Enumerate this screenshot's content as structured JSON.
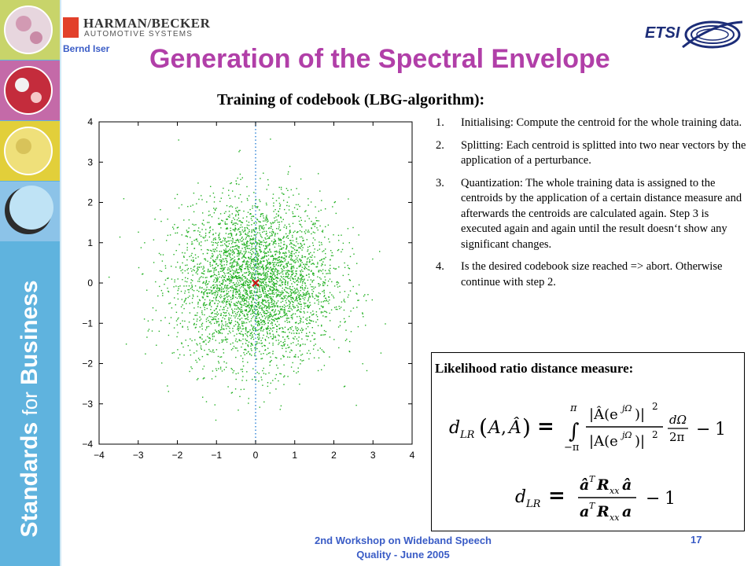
{
  "sidebar": {
    "text_prefix": "Standards",
    "text_middle": "for",
    "text_suffix": "Business"
  },
  "header": {
    "logo_name": "HARMAN/BECKER",
    "logo_subtitle": "AUTOMOTIVE SYSTEMS",
    "author": "Bernd Iser",
    "right_logo": "ETSI",
    "title": "Generation of the Spectral Envelope"
  },
  "main": {
    "subtitle": "Training of codebook (LBG-algorithm):",
    "steps": [
      {
        "num": "1.",
        "text": "Initialising: Compute the centroid for the whole training data."
      },
      {
        "num": "2.",
        "text": "Splitting: Each centroid is splitted into two near vectors by the application of a perturbance."
      },
      {
        "num": "3.",
        "text": "Quantization: The whole training data is assigned to the centroids by the application of a certain distance measure and afterwards the centroids are calculated again. Step 3 is executed again and again until the result doesn‘t show any significant changes."
      },
      {
        "num": "4.",
        "text": "Is the desired codebook size reached => abort. Otherwise continue with step 2."
      }
    ],
    "measure_title": "Likelihood ratio distance measure:"
  },
  "footer": {
    "line1": "2nd Workshop on Wideband Speech",
    "line2": "Quality - June 2005",
    "page": "17"
  },
  "colors": {
    "title": "#b13fa8",
    "footer": "#3a5cc6",
    "points": "#22b022",
    "centroid": "#d01010",
    "guide": "#3a8ad8",
    "sidebar": "#5fb3de"
  },
  "chart_data": {
    "type": "scatter",
    "title": "",
    "xlabel": "",
    "ylabel": "",
    "xlim": [
      -4,
      4
    ],
    "ylim": [
      -4,
      4
    ],
    "xticks": [
      -4,
      -3,
      -2,
      -1,
      0,
      1,
      2,
      3,
      4
    ],
    "yticks": [
      -4,
      -3,
      -2,
      -1,
      0,
      1,
      2,
      3,
      4
    ],
    "points_description_count": 4000,
    "distribution": "2D standard normal, mean [0,0], std 1",
    "centroid": [
      0,
      0
    ],
    "vertical_guide_x": 0,
    "grid": false
  }
}
